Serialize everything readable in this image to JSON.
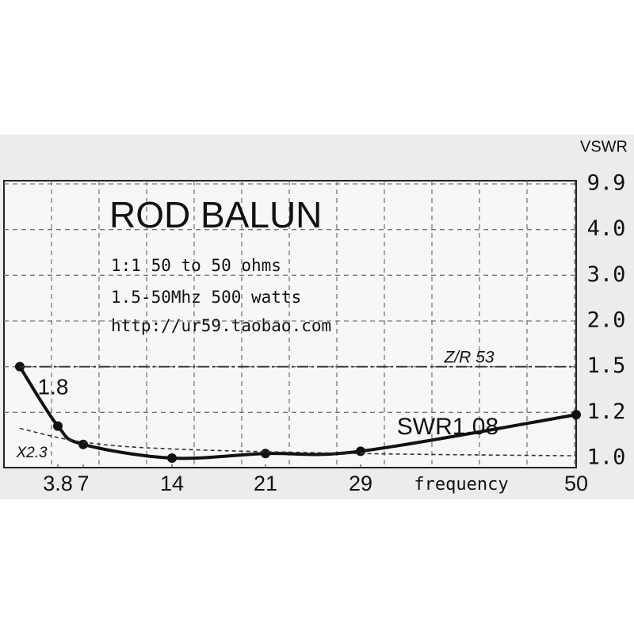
{
  "chart_data": {
    "type": "line",
    "title": "ROD BALUN",
    "annotations": [
      "1:1 50 to 50 ohms",
      "1.5-50Mhz 500 watts",
      "http://ur59.taobao.com"
    ],
    "y_label": "VSWR",
    "x_label": "frequency",
    "xticks": [
      3.8,
      7,
      14,
      21,
      29,
      50
    ],
    "yticks": [
      {
        "value": 1,
        "label": "1.0"
      },
      1.2,
      1.5,
      {
        "value": 2,
        "label": "2.0"
      },
      {
        "value": 3,
        "label": "3.0"
      },
      {
        "value": 4,
        "label": "4.0"
      },
      9.9
    ],
    "ylim": [
      1,
      9.9
    ],
    "xlim": [
      1.8,
      50
    ],
    "series": [
      {
        "name": "SWR1.08",
        "color": "#111111",
        "x": [
          1.8,
          3.8,
          7,
          14,
          21,
          29,
          50
        ],
        "values": [
          1.5,
          1.14,
          1.06,
          1.0,
          1.02,
          1.03,
          1.19
        ]
      },
      {
        "name": "Z/R 53",
        "color": "#333333",
        "x": [
          1.8,
          50
        ],
        "values": [
          1.5,
          1.5
        ]
      },
      {
        "name": "X2.3",
        "color": "#333333",
        "x": [
          1.8,
          7,
          14,
          29,
          50
        ],
        "values": [
          1.13,
          1.07,
          1.04,
          1.02,
          1.01
        ]
      }
    ]
  }
}
